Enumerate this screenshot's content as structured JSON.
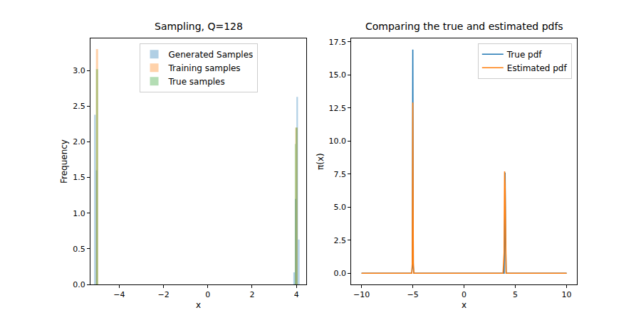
{
  "chart_data": [
    {
      "type": "histogram",
      "title": "Sampling, Q=128",
      "x_label": "x",
      "y_label": "Frequency",
      "series": [
        {
          "name": "Generated Samples",
          "color": "#1f77b4",
          "bins": [
            -5.13,
            -5.06,
            -4.99,
            3.86,
            3.93,
            4.0,
            4.07,
            4.14
          ],
          "values": [
            2.38,
            1.6,
            0,
            0.17,
            1.2,
            2.63,
            0.63
          ]
        },
        {
          "name": "Training samples",
          "color": "#ff7f0e",
          "bins": [
            -5.05,
            -4.95,
            3.95,
            4.05
          ],
          "values": [
            3.3,
            0,
            2.2
          ]
        },
        {
          "name": "True samples",
          "color": "#2ca02c",
          "bins": [
            -5.05,
            -4.95,
            3.93,
            3.99,
            4.05
          ],
          "values": [
            3.02,
            0,
            1.97,
            2.2
          ]
        }
      ],
      "xlim": [
        -5.3,
        4.45
      ],
      "xticks": [
        {
          "value": -4,
          "label": "−4"
        },
        {
          "value": -2,
          "label": "−2"
        },
        0,
        2,
        4
      ],
      "ylim": [
        0,
        3.45
      ],
      "yticks": [
        {
          "value": 0,
          "label": "0.0"
        },
        {
          "value": 0.5,
          "label": "0.5"
        },
        {
          "value": 1,
          "label": "1.0"
        },
        {
          "value": 1.5,
          "label": "1.5"
        },
        {
          "value": 2,
          "label": "2.0"
        },
        {
          "value": 2.5,
          "label": "2.5"
        },
        {
          "value": 3,
          "label": "3.0"
        }
      ],
      "legend": "upper center"
    },
    {
      "type": "line",
      "title": "Comparing the true and estimated pdfs",
      "x_label": "x",
      "y_label": "π(x)",
      "x": [
        -10,
        -6,
        -5.1,
        -5.05,
        -5,
        -4.95,
        -4.9,
        -4,
        3.8,
        3.9,
        3.95,
        4,
        4.05,
        4.1,
        4.2,
        6,
        10
      ],
      "series": [
        {
          "name": "True pdf",
          "color": "#1f77b4",
          "values": [
            0,
            0,
            0,
            0.5,
            16.9,
            0.5,
            0,
            0,
            0,
            0,
            2.5,
            7.6,
            2.5,
            0,
            0,
            0,
            0
          ]
        },
        {
          "name": "Estimated pdf",
          "color": "#ff7f0e",
          "values": [
            0,
            0,
            0,
            0.8,
            12.9,
            0.8,
            0,
            0,
            0,
            1.5,
            7.7,
            6.5,
            1.0,
            0,
            0,
            0,
            0
          ]
        }
      ],
      "xlim": [
        -11,
        11
      ],
      "xticks": [
        {
          "value": -10,
          "label": "−10"
        },
        {
          "value": -5,
          "label": "−5"
        },
        0,
        5,
        10
      ],
      "ylim": [
        -0.85,
        17.75
      ],
      "yticks": [
        {
          "value": 0,
          "label": "0.0"
        },
        {
          "value": 2.5,
          "label": "2.5"
        },
        {
          "value": 5,
          "label": "5.0"
        },
        {
          "value": 7.5,
          "label": "7.5"
        },
        {
          "value": 10,
          "label": "10.0"
        },
        {
          "value": 12.5,
          "label": "12.5"
        },
        {
          "value": 15,
          "label": "15.0"
        },
        {
          "value": 17.5,
          "label": "17.5"
        }
      ],
      "legend": "upper right"
    }
  ]
}
